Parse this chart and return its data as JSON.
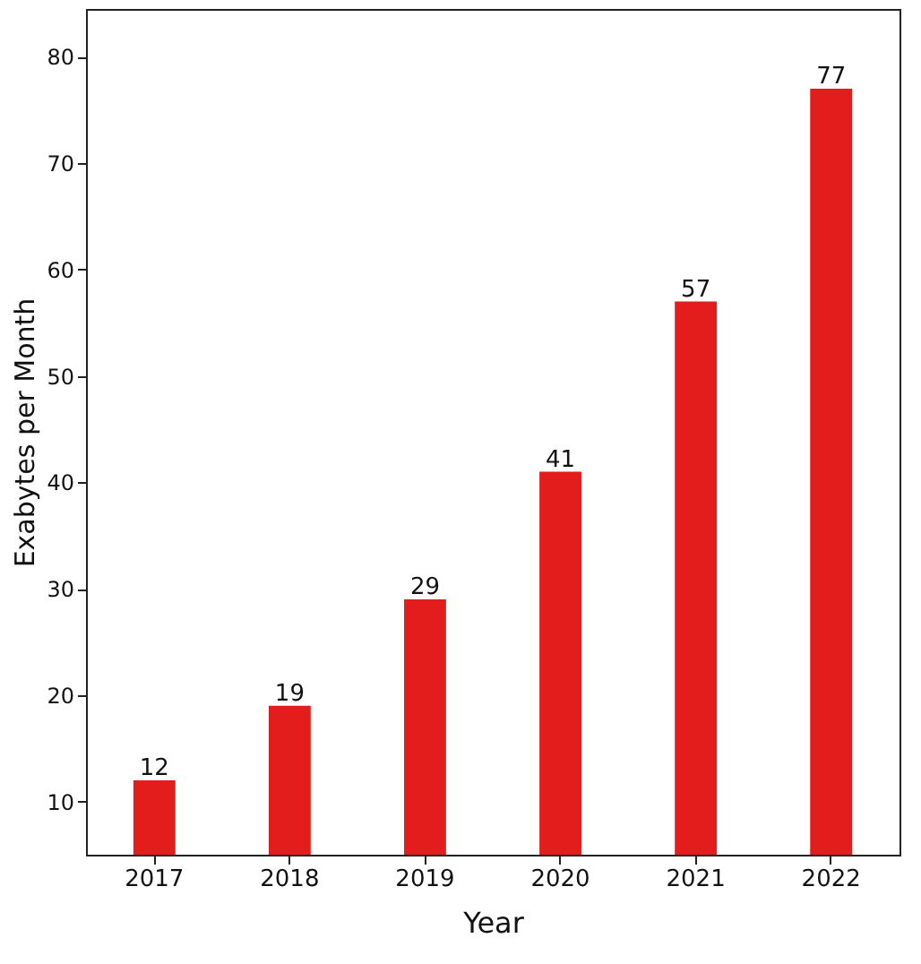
{
  "chart_data": {
    "type": "bar",
    "categories": [
      "2017",
      "2018",
      "2019",
      "2020",
      "2021",
      "2022"
    ],
    "values": [
      12,
      19,
      29,
      41,
      57,
      77
    ],
    "color": "#e31c1c",
    "xlabel": "Year",
    "ylabel": "Exabytes per Month",
    "ylim": [
      5,
      84.5
    ],
    "yticks": [
      10,
      20,
      30,
      40,
      50,
      60,
      70,
      80
    ],
    "data_labels": true,
    "grid": false
  }
}
